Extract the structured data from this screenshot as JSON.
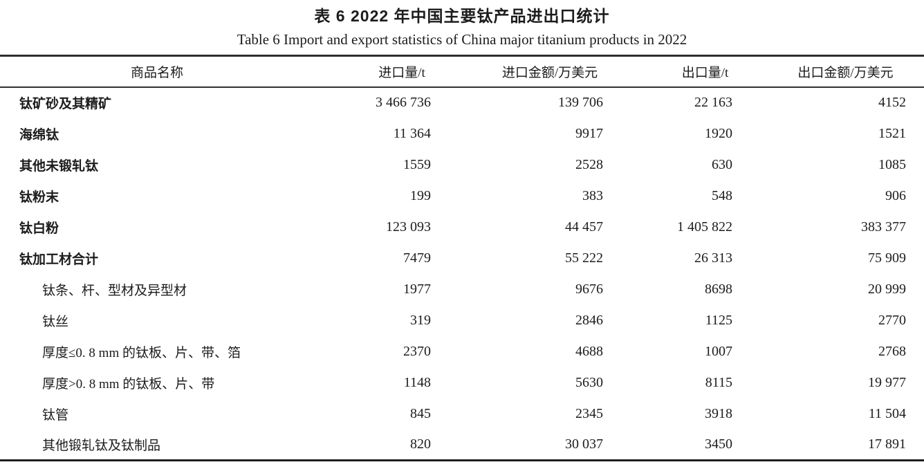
{
  "table": {
    "title_zh": "表 6  2022 年中国主要钛产品进出口统计",
    "title_en": "Table 6  Import and export statistics of China major titanium products in 2022",
    "columns": [
      "商品名称",
      "进口量/t",
      "进口金额/万美元",
      "出口量/t",
      "出口金额/万美元"
    ],
    "rows": [
      {
        "name": "钛矿砂及其精矿",
        "bold": true,
        "indent": false,
        "values": [
          "3 466 736",
          "139 706",
          "22 163",
          "4152"
        ]
      },
      {
        "name": "海绵钛",
        "bold": true,
        "indent": false,
        "values": [
          "11 364",
          "9917",
          "1920",
          "1521"
        ]
      },
      {
        "name": "其他未锻轧钛",
        "bold": true,
        "indent": false,
        "values": [
          "1559",
          "2528",
          "630",
          "1085"
        ]
      },
      {
        "name": "钛粉末",
        "bold": true,
        "indent": false,
        "values": [
          "199",
          "383",
          "548",
          "906"
        ]
      },
      {
        "name": "钛白粉",
        "bold": true,
        "indent": false,
        "values": [
          "123 093",
          "44 457",
          "1 405 822",
          "383 377"
        ]
      },
      {
        "name": "钛加工材合计",
        "bold": true,
        "indent": false,
        "values": [
          "7479",
          "55 222",
          "26 313",
          "75 909"
        ]
      },
      {
        "name": "钛条、杆、型材及异型材",
        "bold": false,
        "indent": true,
        "values": [
          "1977",
          "9676",
          "8698",
          "20 999"
        ]
      },
      {
        "name": "钛丝",
        "bold": false,
        "indent": true,
        "values": [
          "319",
          "2846",
          "1125",
          "2770"
        ]
      },
      {
        "name": "厚度≤0. 8 mm 的钛板、片、带、箔",
        "bold": false,
        "indent": true,
        "values": [
          "2370",
          "4688",
          "1007",
          "2768"
        ]
      },
      {
        "name": "厚度>0. 8 mm 的钛板、片、带",
        "bold": false,
        "indent": true,
        "values": [
          "1148",
          "5630",
          "8115",
          "19 977"
        ]
      },
      {
        "name": "钛管",
        "bold": false,
        "indent": true,
        "values": [
          "845",
          "2345",
          "3918",
          "11 504"
        ]
      },
      {
        "name": "其他锻轧钛及钛制品",
        "bold": false,
        "indent": true,
        "values": [
          "820",
          "30 037",
          "3450",
          "17 891"
        ]
      }
    ],
    "colors": {
      "text": "#1c1c1c",
      "rule": "#2e2e2e",
      "background": "#ffffff"
    }
  }
}
